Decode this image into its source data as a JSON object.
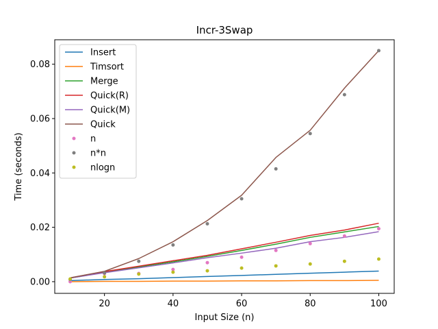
{
  "chart_data": {
    "type": "line",
    "title": "Incr-3Swap",
    "xlabel": "Input Size (n)",
    "ylabel": "Time (seconds)",
    "x": [
      10,
      20,
      30,
      40,
      50,
      60,
      70,
      80,
      90,
      100
    ],
    "xlim": [
      5.5,
      104.5
    ],
    "ylim": [
      -0.0043,
      0.089
    ],
    "xticks": [
      20,
      40,
      60,
      80,
      100
    ],
    "yticks": [
      0.0,
      0.02,
      0.04,
      0.06,
      0.08
    ],
    "ytick_labels": [
      "0.00",
      "0.02",
      "0.04",
      "0.06",
      "0.08"
    ],
    "grid": false,
    "legend_position": "top-left",
    "series": [
      {
        "name": "Insert",
        "kind": "line",
        "color": "#1f77b4",
        "values": [
          0.0004,
          0.0008,
          0.0011,
          0.0015,
          0.0019,
          0.0023,
          0.0027,
          0.0031,
          0.0035,
          0.0039
        ]
      },
      {
        "name": "Timsort",
        "kind": "line",
        "color": "#ff7f0e",
        "values": [
          0.0,
          0.0001,
          0.0001,
          0.0002,
          0.0002,
          0.0003,
          0.0003,
          0.0004,
          0.0004,
          0.0005
        ]
      },
      {
        "name": "Merge",
        "kind": "line",
        "color": "#2ca02c",
        "values": [
          0.0013,
          0.0035,
          0.0054,
          0.0073,
          0.0093,
          0.0115,
          0.0138,
          0.0163,
          0.0183,
          0.0203
        ]
      },
      {
        "name": "Quick(R)",
        "kind": "line",
        "color": "#d62728",
        "values": [
          0.0014,
          0.0037,
          0.0057,
          0.0077,
          0.0097,
          0.0121,
          0.0145,
          0.017,
          0.019,
          0.0215
        ]
      },
      {
        "name": "Quick(M)",
        "kind": "line",
        "color": "#9467bd",
        "values": [
          0.0013,
          0.0033,
          0.0051,
          0.0069,
          0.0088,
          0.0105,
          0.0123,
          0.0147,
          0.0163,
          0.0184
        ]
      },
      {
        "name": "Quick",
        "kind": "line",
        "color": "#8c564b",
        "values": [
          0.0014,
          0.0038,
          0.0085,
          0.0147,
          0.0225,
          0.0318,
          0.0457,
          0.0557,
          0.0712,
          0.085
        ]
      },
      {
        "name": "n",
        "kind": "scatter",
        "color": "#e377c2",
        "values": [
          0.0,
          0.003,
          0.003,
          0.0045,
          0.007,
          0.009,
          0.0115,
          0.014,
          0.0168,
          0.0195
        ]
      },
      {
        "name": "n*n",
        "kind": "scatter",
        "color": "#7f7f7f",
        "values": [
          0.0008,
          0.0032,
          0.0075,
          0.0135,
          0.0213,
          0.0305,
          0.0415,
          0.0545,
          0.0688,
          0.085
        ]
      },
      {
        "name": "nlogn",
        "kind": "scatter",
        "color": "#bcbd22",
        "values": [
          0.001,
          0.0018,
          0.0028,
          0.0035,
          0.004,
          0.005,
          0.0058,
          0.0065,
          0.0075,
          0.0083
        ]
      }
    ]
  }
}
